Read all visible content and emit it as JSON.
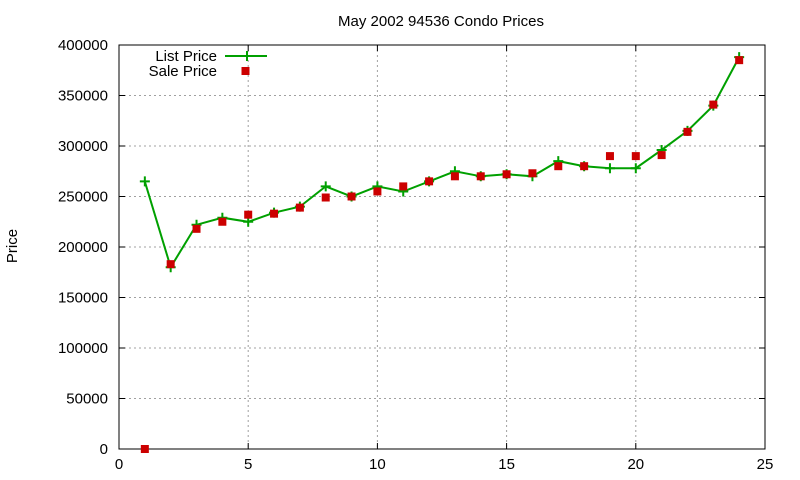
{
  "chart_data": {
    "type": "line",
    "title": "May 2002 94536 Condo Prices",
    "xlabel": "",
    "ylabel": "Price",
    "xlim": [
      0,
      25
    ],
    "ylim": [
      0,
      400000
    ],
    "x_ticks": [
      0,
      5,
      10,
      15,
      20,
      25
    ],
    "y_ticks": [
      0,
      50000,
      100000,
      150000,
      200000,
      250000,
      300000,
      350000,
      400000
    ],
    "grid": true,
    "legend_position": "top-left",
    "series": [
      {
        "name": "List Price",
        "style": "line-with-plus-markers",
        "color": "#00a000",
        "x": [
          1,
          2,
          3,
          4,
          5,
          6,
          7,
          8,
          9,
          10,
          11,
          12,
          13,
          14,
          15,
          16,
          17,
          18,
          19,
          20,
          21,
          22,
          23,
          24
        ],
        "y": [
          265000,
          180000,
          222000,
          229000,
          225000,
          234000,
          240000,
          260000,
          250000,
          260000,
          255000,
          265000,
          275000,
          270000,
          272000,
          270000,
          285000,
          280000,
          278000,
          278000,
          296000,
          315000,
          340000,
          388000
        ]
      },
      {
        "name": "Sale Price",
        "style": "square-markers",
        "color": "#cc0000",
        "x": [
          1,
          2,
          3,
          4,
          5,
          6,
          7,
          8,
          9,
          10,
          11,
          12,
          13,
          14,
          15,
          16,
          17,
          18,
          19,
          20,
          21,
          22,
          23,
          24
        ],
        "y": [
          0,
          183000,
          218000,
          225000,
          232000,
          233000,
          239000,
          249000,
          250000,
          255000,
          260000,
          265000,
          270000,
          270000,
          272000,
          273000,
          280000,
          280000,
          290000,
          290000,
          291000,
          314000,
          341000,
          385000
        ]
      }
    ]
  }
}
